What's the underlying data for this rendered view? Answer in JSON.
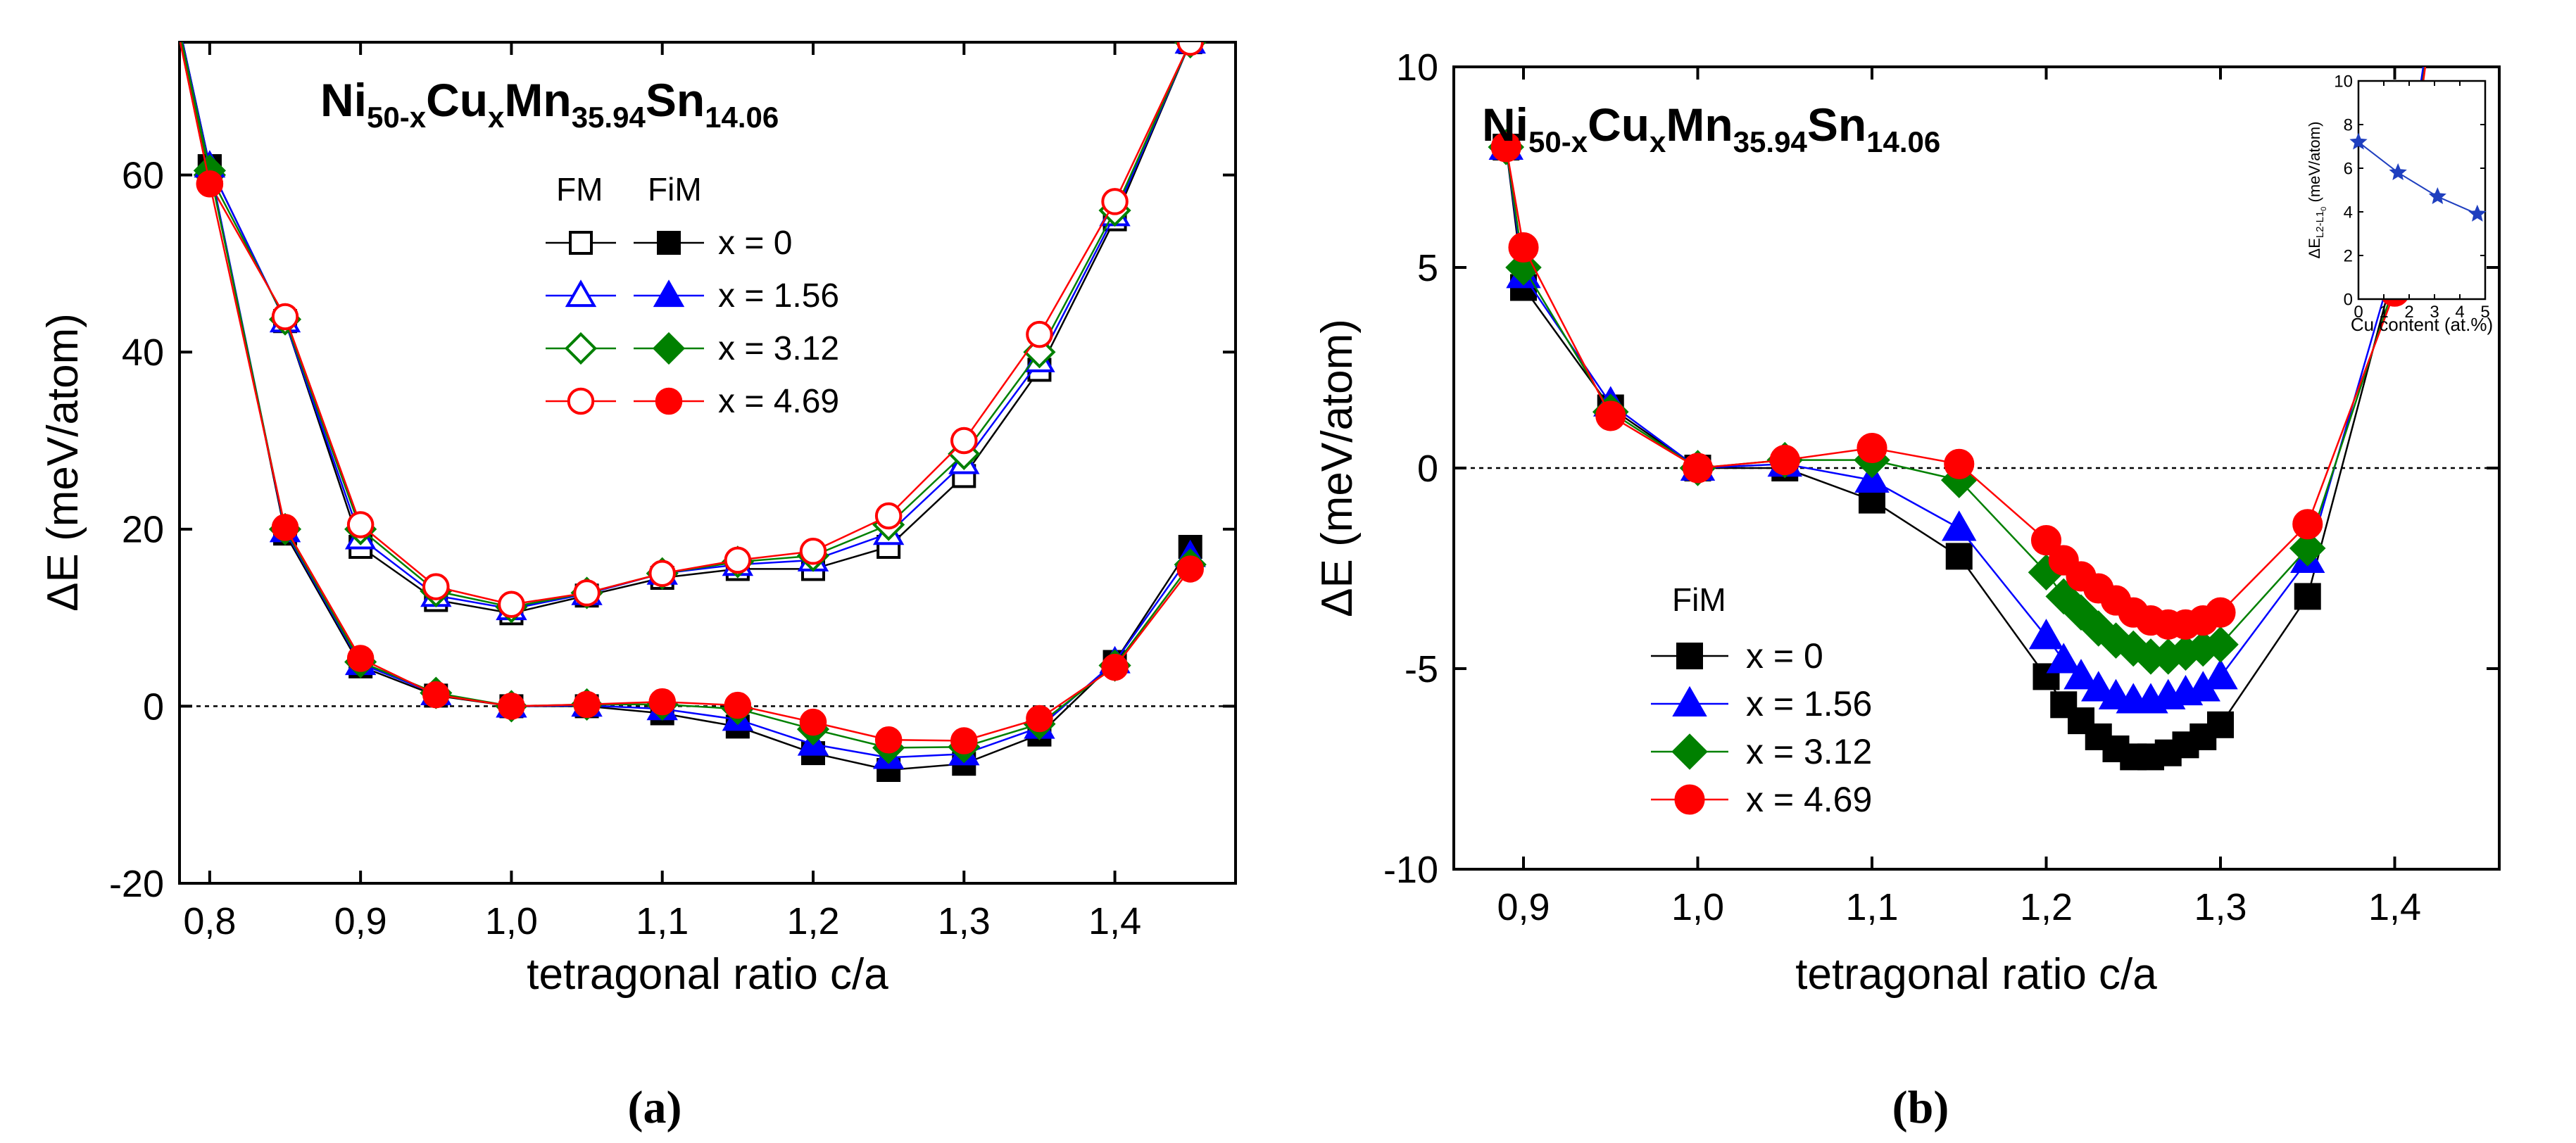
{
  "panels": [
    {
      "caption": "(a)",
      "title": {
        "base1": "Ni",
        "sub1": "50-x",
        "base2": "Cu",
        "sub2": "x",
        "base3": "Mn",
        "sub3": "35.94",
        "base4": "Sn",
        "sub4": "14.06"
      },
      "legend_header_fm": "FM",
      "legend_header_fim": "FiM"
    },
    {
      "caption": "(b)",
      "title": {
        "base1": "Ni",
        "sub1": "50-x",
        "base2": "Cu",
        "sub2": "x",
        "base3": "Mn",
        "sub3": "35.94",
        "base4": "Sn",
        "sub4": "14.06"
      },
      "legend_header_fim": "FiM"
    }
  ],
  "chart_data": [
    {
      "type": "line",
      "xlabel": "tetragonal ratio c/a",
      "ylabel": "ΔE (meV/atom)",
      "xlim": [
        0.78,
        1.48
      ],
      "ylim": [
        -20,
        75
      ],
      "xticks": [
        0.8,
        0.9,
        1.0,
        1.1,
        1.2,
        1.3,
        1.4
      ],
      "xtick_labels": [
        "0,8",
        "0,9",
        "1,0",
        "1,1",
        "1,2",
        "1,3",
        "1,4"
      ],
      "yticks": [
        -20,
        0,
        20,
        40,
        60
      ],
      "ytick_labels": [
        "-20",
        "0",
        "20",
        "40",
        "60"
      ],
      "grid": false,
      "reference_line_y": 0,
      "legend_position": "top-center",
      "series": [
        {
          "name": "x = 0",
          "phase": "FM",
          "marker": "square",
          "filled": false,
          "color": "#000000",
          "x": [
            0.75,
            0.8,
            0.85,
            0.9,
            0.95,
            1.0,
            1.05,
            1.1,
            1.15,
            1.2,
            1.25,
            1.3,
            1.35,
            1.4,
            1.45,
            1.47
          ],
          "y": [
            100,
            61,
            43.5,
            18,
            12,
            10.5,
            12.5,
            14.5,
            15.5,
            15.5,
            18,
            26,
            38,
            55,
            75,
            85
          ]
        },
        {
          "name": "x = 1.56",
          "phase": "FM",
          "marker": "triangle",
          "filled": false,
          "color": "#0000ff",
          "x": [
            0.75,
            0.8,
            0.85,
            0.9,
            0.95,
            1.0,
            1.05,
            1.1,
            1.15,
            1.2,
            1.25,
            1.3,
            1.35,
            1.4,
            1.45,
            1.47
          ],
          "y": [
            100,
            61,
            43.5,
            19,
            12.5,
            11,
            12.7,
            15,
            16,
            16.5,
            19.5,
            27.5,
            39,
            55.5,
            75,
            85
          ]
        },
        {
          "name": "x = 3.12",
          "phase": "FM",
          "marker": "diamond",
          "filled": false,
          "color": "#008000",
          "x": [
            0.75,
            0.8,
            0.85,
            0.9,
            0.95,
            1.0,
            1.05,
            1.1,
            1.15,
            1.2,
            1.25,
            1.3,
            1.35,
            1.4,
            1.45,
            1.47
          ],
          "y": [
            100,
            60,
            43.7,
            20,
            13,
            11.2,
            12.8,
            15,
            16.3,
            17,
            20.5,
            28.5,
            40,
            56,
            75,
            85
          ]
        },
        {
          "name": "x = 4.69",
          "phase": "FM",
          "marker": "circle",
          "filled": false,
          "color": "#ff0000",
          "x": [
            0.75,
            0.8,
            0.85,
            0.9,
            0.95,
            1.0,
            1.05,
            1.1,
            1.15,
            1.2,
            1.25,
            1.3,
            1.35,
            1.4,
            1.45,
            1.47
          ],
          "y": [
            100,
            59,
            44,
            20.5,
            13.5,
            11.5,
            12.8,
            15,
            16.5,
            17.5,
            21.5,
            30,
            42,
            57,
            75,
            85
          ]
        },
        {
          "name": "x = 0",
          "phase": "FiM",
          "marker": "square",
          "filled": true,
          "color": "#000000",
          "x": [
            0.75,
            0.8,
            0.85,
            0.9,
            0.95,
            1.0,
            1.05,
            1.1,
            1.15,
            1.2,
            1.25,
            1.3,
            1.35,
            1.4,
            1.45
          ],
          "y": [
            100,
            61,
            19.5,
            4.5,
            1.2,
            0,
            0,
            -0.8,
            -2.3,
            -5.3,
            -7.2,
            -6.5,
            -3.2,
            5,
            18
          ]
        },
        {
          "name": "x = 1.56",
          "phase": "FiM",
          "marker": "triangle",
          "filled": true,
          "color": "#0000ff",
          "x": [
            0.75,
            0.8,
            0.85,
            0.9,
            0.95,
            1.0,
            1.05,
            1.1,
            1.15,
            1.2,
            1.25,
            1.3,
            1.35,
            1.4,
            1.45
          ],
          "y": [
            100,
            61,
            19.8,
            4.8,
            1.4,
            0,
            0.1,
            -0.3,
            -1.5,
            -4.3,
            -5.8,
            -5.4,
            -2.4,
            5,
            17
          ]
        },
        {
          "name": "x = 3.12",
          "phase": "FiM",
          "marker": "diamond",
          "filled": true,
          "color": "#008000",
          "x": [
            0.75,
            0.8,
            0.85,
            0.9,
            0.95,
            1.0,
            1.05,
            1.1,
            1.15,
            1.2,
            1.25,
            1.3,
            1.35,
            1.4,
            1.45
          ],
          "y": [
            100,
            60.5,
            20,
            5,
            1.5,
            0,
            0.2,
            0.2,
            -0.3,
            -2.6,
            -4.7,
            -4.6,
            -2,
            4.6,
            16
          ]
        },
        {
          "name": "x = 4.69",
          "phase": "FiM",
          "marker": "circle",
          "filled": true,
          "color": "#ff0000",
          "x": [
            0.75,
            0.8,
            0.85,
            0.9,
            0.95,
            1.0,
            1.05,
            1.1,
            1.15,
            1.2,
            1.25,
            1.3,
            1.35,
            1.4,
            1.45
          ],
          "y": [
            100,
            59,
            20.2,
            5.4,
            1.3,
            0,
            0.2,
            0.5,
            0.1,
            -1.8,
            -3.8,
            -3.9,
            -1.4,
            4.4,
            15.5
          ]
        }
      ]
    },
    {
      "type": "line",
      "xlabel": "tetragonal ratio c/a",
      "ylabel": "ΔE (meV/atom)",
      "xlim": [
        0.86,
        1.46
      ],
      "ylim": [
        -10,
        10
      ],
      "xticks": [
        0.9,
        1.0,
        1.1,
        1.2,
        1.3,
        1.4
      ],
      "xtick_labels": [
        "0,9",
        "1,0",
        "1,1",
        "1,2",
        "1,3",
        "1,4"
      ],
      "yticks": [
        -10,
        -5,
        0,
        5,
        10
      ],
      "ytick_labels": [
        "-10",
        "-5",
        "0",
        "5",
        "10"
      ],
      "grid": false,
      "reference_line_y": 0,
      "legend_position": "bottom-left",
      "series": [
        {
          "name": "x = 0",
          "phase": "FiM",
          "marker": "square",
          "filled": true,
          "color": "#000000",
          "x": [
            0.89,
            0.9,
            0.95,
            1.0,
            1.05,
            1.1,
            1.15,
            1.2,
            1.21,
            1.22,
            1.23,
            1.24,
            1.25,
            1.26,
            1.27,
            1.28,
            1.29,
            1.3,
            1.35,
            1.4,
            1.43
          ],
          "y": [
            8,
            4.5,
            1.5,
            0,
            0,
            -0.8,
            -2.2,
            -5.2,
            -5.9,
            -6.3,
            -6.7,
            -7,
            -7.2,
            -7.2,
            -7.1,
            -6.9,
            -6.7,
            -6.4,
            -3.2,
            5,
            14
          ]
        },
        {
          "name": "x = 1.56",
          "phase": "FiM",
          "marker": "triangle",
          "filled": true,
          "color": "#0000ff",
          "x": [
            0.89,
            0.9,
            0.95,
            1.0,
            1.05,
            1.1,
            1.15,
            1.2,
            1.21,
            1.22,
            1.23,
            1.24,
            1.25,
            1.26,
            1.27,
            1.28,
            1.29,
            1.3,
            1.35,
            1.4,
            1.43
          ],
          "y": [
            8,
            4.8,
            1.6,
            0,
            0.1,
            -0.3,
            -1.5,
            -4.2,
            -4.8,
            -5.2,
            -5.5,
            -5.7,
            -5.8,
            -5.8,
            -5.7,
            -5.6,
            -5.5,
            -5.2,
            -2.3,
            5.2,
            14
          ]
        },
        {
          "name": "x = 3.12",
          "phase": "FiM",
          "marker": "diamond",
          "filled": true,
          "color": "#008000",
          "x": [
            0.89,
            0.9,
            0.95,
            1.0,
            1.05,
            1.1,
            1.15,
            1.2,
            1.21,
            1.22,
            1.23,
            1.24,
            1.25,
            1.26,
            1.27,
            1.28,
            1.29,
            1.3,
            1.35,
            1.4,
            1.43
          ],
          "y": [
            8,
            5,
            1.4,
            0,
            0.2,
            0.2,
            -0.3,
            -2.6,
            -3.2,
            -3.6,
            -4,
            -4.3,
            -4.5,
            -4.7,
            -4.7,
            -4.6,
            -4.5,
            -4.4,
            -2,
            4.6,
            14
          ]
        },
        {
          "name": "x = 4.69",
          "phase": "FiM",
          "marker": "circle",
          "filled": true,
          "color": "#ff0000",
          "x": [
            0.89,
            0.9,
            0.95,
            1.0,
            1.05,
            1.1,
            1.15,
            1.2,
            1.21,
            1.22,
            1.23,
            1.24,
            1.25,
            1.26,
            1.27,
            1.28,
            1.29,
            1.3,
            1.35,
            1.4,
            1.43
          ],
          "y": [
            8,
            5.5,
            1.3,
            0,
            0.2,
            0.5,
            0.1,
            -1.8,
            -2.3,
            -2.7,
            -3,
            -3.3,
            -3.6,
            -3.8,
            -3.9,
            -3.9,
            -3.8,
            -3.6,
            -1.4,
            4.4,
            14
          ]
        }
      ],
      "inset": {
        "type": "line",
        "xlabel": "Cu content (at.%)",
        "ylabel": {
          "delta": "ΔE",
          "sub_a": "L2",
          "sub_b": "-L1",
          "sub_c": "0",
          "unit": " (meV/atom)"
        },
        "xlim": [
          0,
          5
        ],
        "ylim": [
          0,
          10
        ],
        "xticks": [
          0,
          1,
          2,
          3,
          4,
          5
        ],
        "xtick_labels": [
          "0",
          "1",
          "2",
          "3",
          "4",
          "5"
        ],
        "yticks": [
          0,
          2,
          4,
          6,
          8,
          10
        ],
        "ytick_labels": [
          "0",
          "2",
          "4",
          "6",
          "8",
          "10"
        ],
        "marker": "star",
        "color": "#1f3fbf",
        "x": [
          0,
          1.56,
          3.12,
          4.69
        ],
        "y": [
          7.2,
          5.8,
          4.7,
          3.9
        ]
      }
    }
  ]
}
